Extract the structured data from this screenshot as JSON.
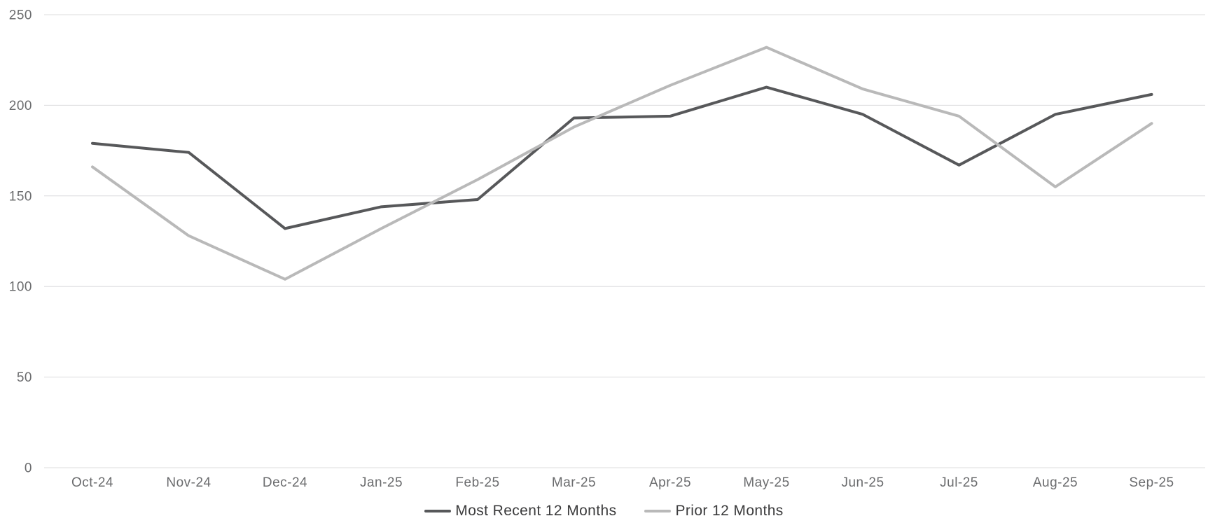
{
  "chart_data": {
    "type": "line",
    "title": "",
    "xlabel": "",
    "ylabel": "",
    "categories": [
      "Oct-24",
      "Nov-24",
      "Dec-24",
      "Jan-25",
      "Feb-25",
      "Mar-25",
      "Apr-25",
      "May-25",
      "Jun-25",
      "Jul-25",
      "Aug-25",
      "Sep-25"
    ],
    "series": [
      {
        "name": "Most Recent 12 Months",
        "color": "#57585a",
        "values": [
          179,
          174,
          132,
          144,
          148,
          193,
          194,
          210,
          195,
          167,
          195,
          206
        ]
      },
      {
        "name": "Prior 12 Months",
        "color": "#b9b9b9",
        "values": [
          166,
          128,
          104,
          132,
          159,
          188,
          211,
          232,
          209,
          194,
          155,
          190
        ]
      }
    ],
    "ylim": [
      0,
      250
    ],
    "yticks": [
      0,
      50,
      100,
      150,
      200,
      250
    ],
    "grid": true,
    "legend_position": "bottom",
    "axis_tick_color": "#6b6c6e",
    "gridline_color": "#dcdcdd",
    "legend_text_color": "#3b3b3c",
    "background_color": "#ffffff"
  }
}
